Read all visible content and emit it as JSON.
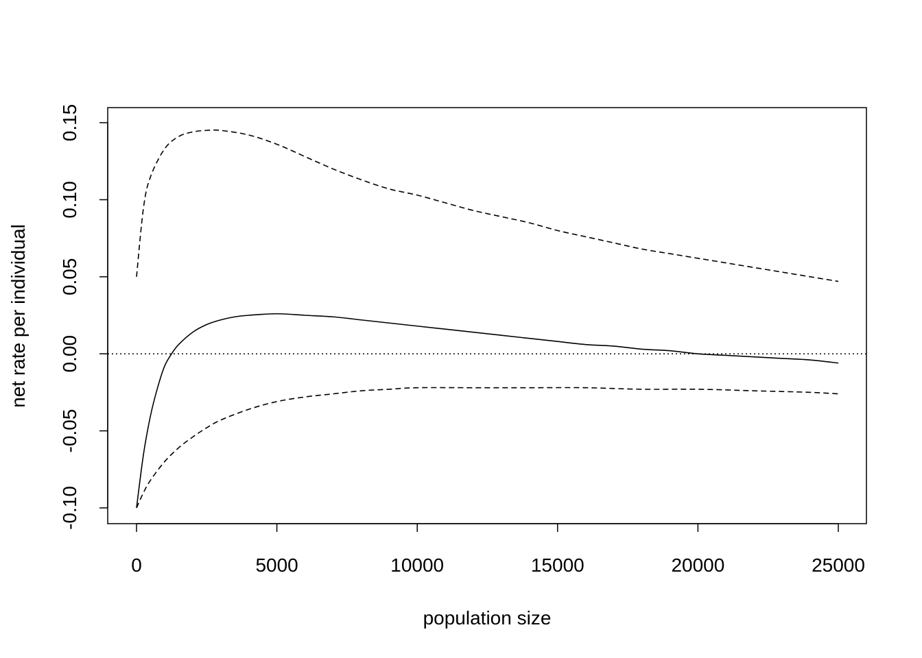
{
  "chart_data": {
    "type": "line",
    "title": "",
    "xlabel": "population size",
    "ylabel": "net rate per individual",
    "xlim": [
      -1000,
      26000
    ],
    "ylim": [
      -0.11,
      0.16
    ],
    "xticks": [
      0,
      5000,
      10000,
      15000,
      20000,
      25000
    ],
    "xtick_labels": [
      "0",
      "5000",
      "10000",
      "15000",
      "20000",
      "25000"
    ],
    "yticks": [
      -0.1,
      -0.05,
      0,
      0.05,
      0.1,
      0.15
    ],
    "ytick_labels": [
      "-0.10",
      "-0.05",
      "0.00",
      "0.05",
      "0.10",
      "0.15"
    ],
    "grid": false,
    "legend": "none",
    "reference_lines": [
      {
        "y": 0,
        "style": "dotted"
      }
    ],
    "series": [
      {
        "style": "dashed",
        "x": [
          0,
          250,
          500,
          1000,
          1500,
          2000,
          2500,
          3000,
          4000,
          5000,
          6000,
          7000,
          8000,
          9000,
          10000,
          11000,
          12000,
          13000,
          14000,
          15000,
          16000,
          17000,
          18000,
          19000,
          20000,
          21000,
          22000,
          23000,
          24000,
          25000
        ],
        "y": [
          0.05,
          0.095,
          0.115,
          0.133,
          0.141,
          0.144,
          0.145,
          0.145,
          0.142,
          0.136,
          0.128,
          0.12,
          0.113,
          0.107,
          0.103,
          0.098,
          0.093,
          0.089,
          0.085,
          0.08,
          0.076,
          0.072,
          0.068,
          0.065,
          0.062,
          0.059,
          0.056,
          0.053,
          0.05,
          0.047
        ]
      },
      {
        "style": "solid",
        "x": [
          0,
          250,
          500,
          750,
          1000,
          1250,
          1500,
          2000,
          2500,
          3000,
          3500,
          4000,
          5000,
          6000,
          7000,
          8000,
          9000,
          10000,
          11000,
          12000,
          13000,
          14000,
          15000,
          16000,
          17000,
          18000,
          19000,
          20000,
          21000,
          22000,
          23000,
          24000,
          25000
        ],
        "y": [
          -0.1,
          -0.065,
          -0.04,
          -0.022,
          -0.008,
          0.0,
          0.006,
          0.014,
          0.019,
          0.022,
          0.024,
          0.025,
          0.026,
          0.025,
          0.024,
          0.022,
          0.02,
          0.018,
          0.016,
          0.014,
          0.012,
          0.01,
          0.008,
          0.006,
          0.005,
          0.003,
          0.002,
          0.0,
          -0.001,
          -0.002,
          -0.003,
          -0.004,
          -0.006
        ]
      },
      {
        "style": "dashed",
        "x": [
          0,
          250,
          500,
          1000,
          1500,
          2000,
          2500,
          3000,
          4000,
          5000,
          6000,
          7000,
          8000,
          9000,
          10000,
          12000,
          14000,
          16000,
          18000,
          20000,
          22000,
          24000,
          25000
        ],
        "y": [
          -0.1,
          -0.09,
          -0.082,
          -0.07,
          -0.061,
          -0.054,
          -0.048,
          -0.043,
          -0.036,
          -0.031,
          -0.028,
          -0.026,
          -0.024,
          -0.023,
          -0.022,
          -0.022,
          -0.022,
          -0.022,
          -0.023,
          -0.023,
          -0.024,
          -0.025,
          -0.026
        ]
      }
    ]
  }
}
